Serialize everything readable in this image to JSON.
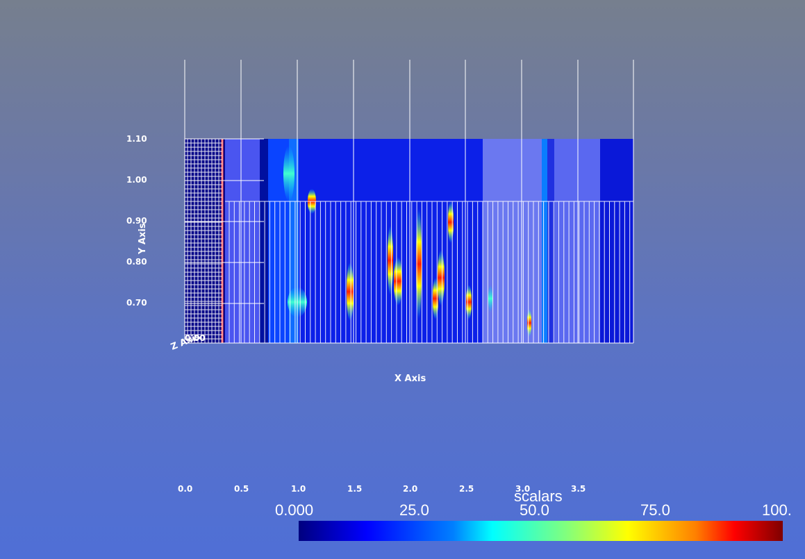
{
  "axes": {
    "x_title": "X Axis",
    "y_title": "Y Axis",
    "z_title": "Z Axis",
    "z_tick": "0.00",
    "x_ticks": [
      "0.0",
      "0.5",
      "1.0",
      "1.5",
      "2.0",
      "2.5",
      "3.0",
      "3.5"
    ],
    "y_ticks": [
      "1.10",
      "1.00",
      "0.90",
      "0.80",
      "0.70"
    ]
  },
  "scalar_bar": {
    "title": "scalars",
    "labels": [
      "0.000",
      "25.0",
      "50.0",
      "75.0",
      "100."
    ],
    "colormap": [
      "#00007f",
      "#0000ff",
      "#00ffff",
      "#ffff00",
      "#ff0000",
      "#7f0000"
    ]
  }
}
